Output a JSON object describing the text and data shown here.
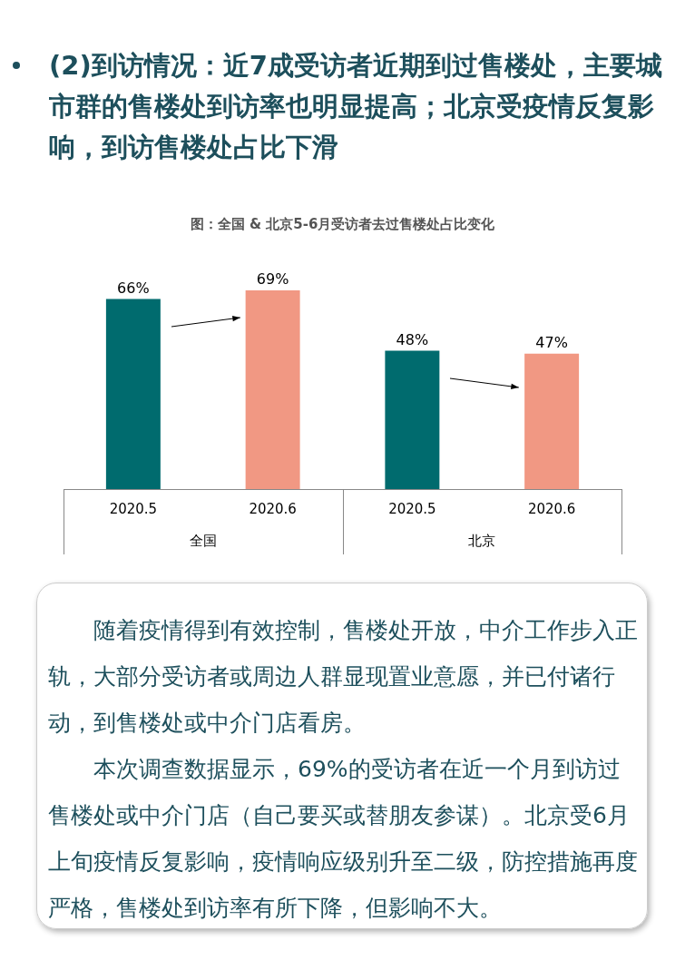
{
  "chart_data": {
    "type": "bar",
    "title": "(2)到访情况：近7成受访者近期到过售楼处，主要城市群的售楼处到访率也明显提高；北京受疫情反复影响，到访售楼处占比下滑",
    "subtitle": "图：全国 & 北京5-6月受访者去过售楼处占比变化",
    "categories": [
      "2020.5",
      "2020.6",
      "2020.5",
      "2020.6"
    ],
    "values": [
      66,
      69,
      48,
      47
    ],
    "colors": [
      "#006b6e",
      "#f19883",
      "#006b6e",
      "#f19883"
    ],
    "value_labels": [
      "66%",
      "69%",
      "48%",
      "47%"
    ],
    "annotations": [
      "全国",
      "北京",
      "随着疫情得到有效控制，售楼处开放，中介工作步入正轨，大部分受访者或周边人群显现置业意愿，并已付诸行动，到售楼处或中介门店看房。",
      "本次调查数据显示，69%的受访者在近一个月到访过售楼处或中介门店（自己要买或替朋友参谋）。北京受6月上旬疫情反复影响，疫情响应级别升至二级，防控措施再度严格，售楼处到访率有所下降，但影响不大。"
    ],
    "grid": false,
    "legend": false
  }
}
